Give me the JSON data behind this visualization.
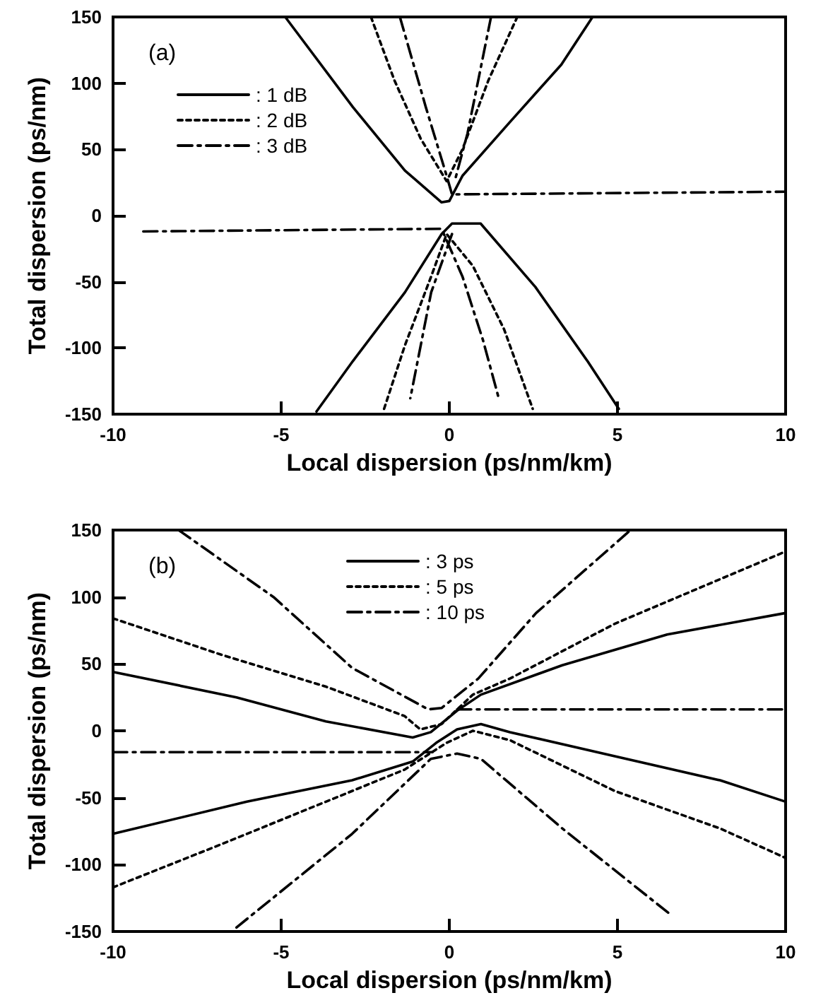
{
  "chart_data": [
    {
      "type": "line",
      "xlabel": "Local dispersion (ps/nm/km)",
      "ylabel": "Total dispersion (ps/nm)",
      "annotations": [
        "(a)"
      ],
      "xlim": [
        -10,
        10
      ],
      "xticks": [
        -10,
        -5,
        0,
        5,
        10
      ],
      "ylim": [
        -150,
        150
      ],
      "yticks": [
        -150,
        -100,
        -50,
        0,
        50,
        100,
        150
      ],
      "grid": false,
      "legend": "top left",
      "marker": "none",
      "series": [
        {
          "name": ": 1 dB",
          "color": "#000000",
          "line_style": "solid",
          "x": [
            -4.88,
            -2.87,
            -1.32,
            -0.23,
            0,
            0.39,
            1.78,
            3.33,
            4.26,
            null,
            -3.95,
            -2.87,
            -1.32,
            -0.23,
            0.08,
            0.93,
            2.56,
            4.11,
            5.04
          ],
          "values": [
            150,
            82,
            34,
            10,
            11,
            30,
            70,
            114,
            150,
            null,
            -148,
            -110,
            -58,
            -14,
            -6,
            -6,
            -54,
            -110,
            -146
          ]
        },
        {
          "name": ": 2 dB",
          "color": "#000000",
          "line_style": "dotted",
          "x": [
            -2.33,
            -1.63,
            -0.85,
            -0.08,
            0.39,
            1.16,
            2.02,
            null,
            -1.94,
            -1.32,
            -0.54,
            -0.08,
            0.7,
            1.63,
            2.48
          ],
          "values": [
            150,
            102,
            58,
            26,
            50,
            102,
            150,
            null,
            -146,
            -98,
            -46,
            -14,
            -38,
            -86,
            -146
          ]
        },
        {
          "name": ": 3 dB",
          "color": "#000000",
          "line_style": "dashed",
          "x": [
            -1.47,
            -0.7,
            -0.08,
            0.08,
            10,
            null,
            1.24,
            0.54,
            0.16,
            null,
            -9.1,
            -0.23,
            0.39,
            1.0,
            1.47,
            null,
            0.08,
            -0.54,
            -1.16
          ],
          "values": [
            150,
            82,
            30,
            16,
            18,
            null,
            150,
            62,
            26,
            null,
            -12,
            -10,
            -46,
            -94,
            -138,
            null,
            -14,
            -58,
            -138
          ]
        }
      ]
    },
    {
      "type": "line",
      "xlabel": "Local dispersion (ps/nm/km)",
      "ylabel": "Total dispersion (ps/nm)",
      "annotations": [
        "(b)"
      ],
      "xlim": [
        -10,
        10
      ],
      "xticks": [
        -10,
        -5,
        0,
        5,
        10
      ],
      "ylim": [
        -150,
        150
      ],
      "yticks": [
        -150,
        -100,
        -50,
        0,
        50,
        100,
        150
      ],
      "grid": false,
      "legend": "top",
      "marker": "none",
      "series": [
        {
          "name": ": 3 ps",
          "color": "#000000",
          "line_style": "solid",
          "x": [
            -10,
            -6.33,
            -3.67,
            -1.09,
            -0.55,
            0.23,
            0.94,
            3.36,
            6.48,
            10,
            null,
            -10,
            -6.02,
            -2.89,
            -1.09,
            -0.39,
            0.23,
            0.94,
            1.8,
            4.92,
            8.05,
            10
          ],
          "values": [
            44,
            25,
            7,
            -5,
            -1,
            15,
            27,
            49,
            72,
            88,
            null,
            -77,
            -53,
            -37,
            -23,
            -9,
            1,
            5,
            -1,
            -19,
            -37,
            -53
          ]
        },
        {
          "name": ": 5 ps",
          "color": "#000000",
          "line_style": "dotted",
          "x": [
            -10,
            -6.8,
            -3.67,
            -1.33,
            -0.86,
            -0.23,
            0.7,
            1.8,
            4.92,
            10,
            null,
            -10,
            -6.8,
            -3.67,
            -1.33,
            -0.08,
            0.7,
            1.8,
            4.92,
            8.05,
            10
          ],
          "values": [
            84,
            57,
            33,
            11,
            1,
            5,
            27,
            39,
            80,
            134,
            null,
            -117,
            -85,
            -53,
            -29,
            -9,
            0,
            -7,
            -45,
            -73,
            -95
          ]
        },
        {
          "name": ": 10 ps",
          "color": "#000000",
          "line_style": "dashed",
          "x": [
            -8.05,
            -5.23,
            -2.89,
            -0.63,
            -0.23,
            0.86,
            2.58,
            5.39,
            null,
            0.23,
            10,
            null,
            -10,
            -0.5,
            null,
            -6.33,
            -2.89,
            -0.55,
            0.23,
            0.94,
            3.36,
            6.56
          ],
          "values": [
            150,
            100,
            47,
            16,
            17,
            39,
            88,
            150,
            null,
            16,
            16,
            null,
            -16,
            -16,
            null,
            -147,
            -77,
            -21,
            -17,
            -21,
            -73,
            -137
          ]
        }
      ]
    }
  ]
}
